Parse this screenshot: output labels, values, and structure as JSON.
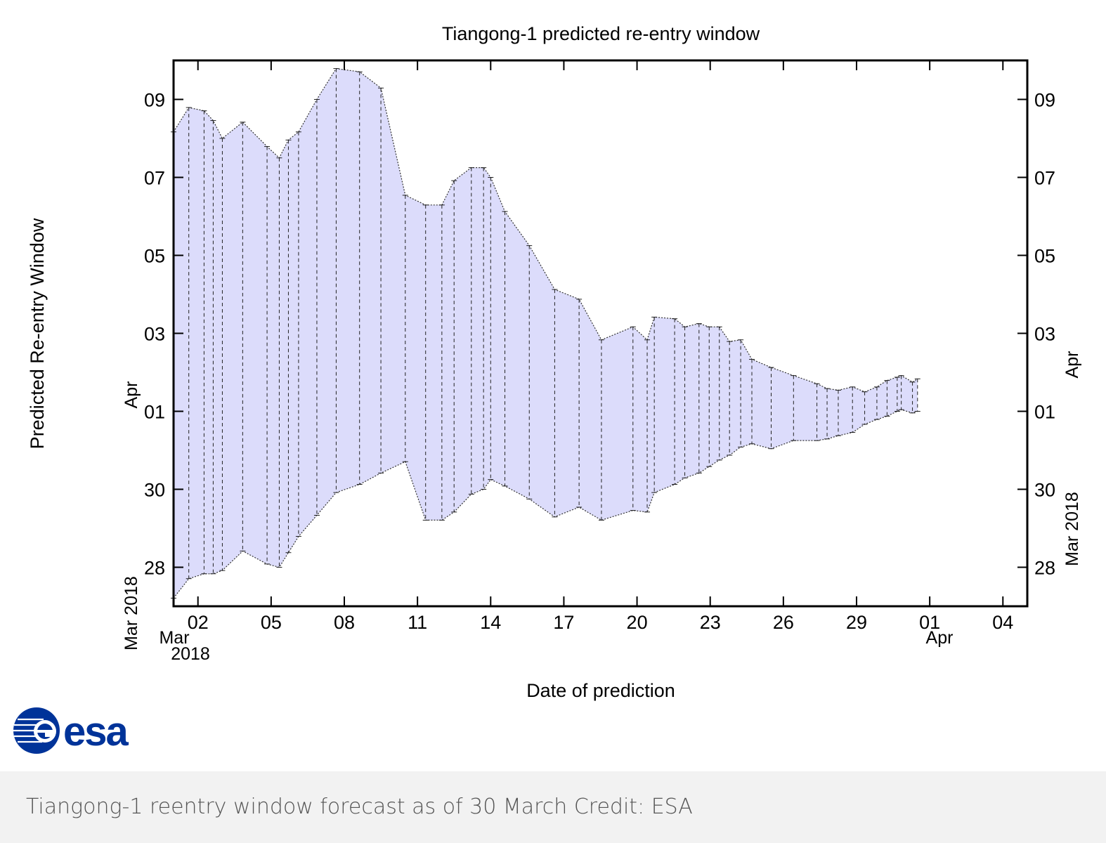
{
  "chart_data": {
    "type": "area",
    "title": "Tiangong-1 predicted re-entry window",
    "xlabel": "Date of prediction",
    "ylabel": "Predicted Re-entry Window",
    "x_axis": {
      "range": [
        "2018-03-01",
        "2018-04-05"
      ],
      "ticks": [
        "02",
        "05",
        "08",
        "11",
        "14",
        "17",
        "20",
        "23",
        "26",
        "29",
        "01",
        "04"
      ],
      "tick_dates": [
        "2018-03-02",
        "2018-03-05",
        "2018-03-08",
        "2018-03-11",
        "2018-03-14",
        "2018-03-17",
        "2018-03-20",
        "2018-03-23",
        "2018-03-26",
        "2018-03-29",
        "2018-04-01",
        "2018-04-04"
      ],
      "month_labels": [
        {
          "month": "Mar",
          "year": "2018"
        },
        {
          "month": "Apr"
        }
      ]
    },
    "y_axis": {
      "range": [
        "2018-03-27",
        "2018-04-10"
      ],
      "ticks": [
        "28",
        "30",
        "01",
        "03",
        "05",
        "07",
        "09"
      ],
      "tick_dates": [
        "2018-03-28",
        "2018-03-30",
        "2018-04-01",
        "2018-04-03",
        "2018-04-05",
        "2018-04-07",
        "2018-04-09"
      ],
      "left_month_labels": [
        "Mar 2018",
        "Apr"
      ],
      "right_month_labels": [
        "Mar 2018",
        "Apr"
      ]
    },
    "series": [
      {
        "x": [
          "2018-03-01 00:00",
          "2018-03-01 15:00",
          "2018-03-02 06:00",
          "2018-03-02 15:00",
          "2018-03-03 00:00",
          "2018-03-03 20:00",
          "2018-03-04 20:00",
          "2018-03-05 08:00",
          "2018-03-05 17:00",
          "2018-03-06 03:00",
          "2018-03-06 21:00",
          "2018-03-07 16:00",
          "2018-03-08 15:00",
          "2018-03-09 12:00",
          "2018-03-10 12:00",
          "2018-03-11 08:00",
          "2018-03-12 00:00",
          "2018-03-12 12:00",
          "2018-03-13 05:00",
          "2018-03-13 17:00",
          "2018-03-14 00:00",
          "2018-03-14 14:00",
          "2018-03-15 14:00",
          "2018-03-16 15:00",
          "2018-03-17 15:00",
          "2018-03-18 13:00",
          "2018-03-19 20:00",
          "2018-03-20 10:00",
          "2018-03-20 17:00",
          "2018-03-21 13:00",
          "2018-03-21 23:00",
          "2018-03-22 13:00",
          "2018-03-22 23:00",
          "2018-03-23 09:00",
          "2018-03-23 19:00",
          "2018-03-24 06:00",
          "2018-03-24 17:00",
          "2018-03-25 12:00",
          "2018-03-26 10:00",
          "2018-03-27 09:00",
          "2018-03-27 19:00",
          "2018-03-28 06:00",
          "2018-03-28 20:00",
          "2018-03-29 08:00",
          "2018-03-29 20:00",
          "2018-03-30 06:00",
          "2018-03-30 16:00",
          "2018-03-30 20:00",
          "2018-03-31 07:00",
          "2018-03-31 12:00"
        ],
        "upper": [
          "2018-04-08 04:00",
          "2018-04-08 19:00",
          "2018-04-08 17:00",
          "2018-04-08 11:00",
          "2018-04-08 00:00",
          "2018-04-08 10:00",
          "2018-04-07 19:00",
          "2018-04-07 12:00",
          "2018-04-07 23:00",
          "2018-04-08 04:00",
          "2018-04-09 00:00",
          "2018-04-09 19:00",
          "2018-04-09 17:00",
          "2018-04-09 07:00",
          "2018-04-06 13:00",
          "2018-04-06 07:00",
          "2018-04-06 07:00",
          "2018-04-06 22:00",
          "2018-04-07 06:00",
          "2018-04-07 06:00",
          "2018-04-07 00:00",
          "2018-04-06 03:00",
          "2018-04-05 06:00",
          "2018-04-04 03:00",
          "2018-04-03 21:00",
          "2018-04-02 20:00",
          "2018-04-03 04:00",
          "2018-04-02 20:00",
          "2018-04-03 10:00",
          "2018-04-03 09:00",
          "2018-04-03 04:00",
          "2018-04-03 06:00",
          "2018-04-03 04:00",
          "2018-04-03 04:00",
          "2018-04-02 19:00",
          "2018-04-02 20:00",
          "2018-04-02 08:00",
          "2018-04-02 03:00",
          "2018-04-01 22:00",
          "2018-04-01 17:00",
          "2018-04-01 14:00",
          "2018-04-01 13:00",
          "2018-04-01 15:00",
          "2018-04-01 12:00",
          "2018-04-01 15:00",
          "2018-04-01 19:00",
          "2018-04-01 21:00",
          "2018-04-01 22:00",
          "2018-04-01 18:00",
          "2018-04-01 20:00"
        ],
        "lower": [
          "2018-03-27 05:00",
          "2018-03-27 17:00",
          "2018-03-27 20:00",
          "2018-03-27 20:00",
          "2018-03-27 22:00",
          "2018-03-28 10:00",
          "2018-03-28 02:00",
          "2018-03-28 00:00",
          "2018-03-28 09:00",
          "2018-03-28 19:00",
          "2018-03-29 08:00",
          "2018-03-29 22:00",
          "2018-03-30 03:00",
          "2018-03-30 10:00",
          "2018-03-30 17:00",
          "2018-03-29 05:00",
          "2018-03-29 05:00",
          "2018-03-29 10:00",
          "2018-03-29 21:00",
          "2018-03-30 00:00",
          "2018-03-30 06:00",
          "2018-03-30 02:00",
          "2018-03-29 18:00",
          "2018-03-29 07:00",
          "2018-03-29 13:00",
          "2018-03-29 05:00",
          "2018-03-29 11:00",
          "2018-03-29 10:00",
          "2018-03-29 22:00",
          "2018-03-30 03:00",
          "2018-03-30 07:00",
          "2018-03-30 10:00",
          "2018-03-30 14:00",
          "2018-03-30 18:00",
          "2018-03-30 21:00",
          "2018-03-31 02:00",
          "2018-03-31 04:00",
          "2018-03-31 01:00",
          "2018-03-31 06:00",
          "2018-03-31 06:00",
          "2018-03-31 07:00",
          "2018-03-31 09:00",
          "2018-03-31 11:00",
          "2018-03-31 16:00",
          "2018-03-31 19:00",
          "2018-03-31 21:00",
          "2018-04-01 00:00",
          "2018-04-01 01:00",
          "2018-03-31 23:00",
          "2018-04-01 00:00"
        ]
      }
    ],
    "grid": false,
    "legend": "none",
    "fill_color": "#dcdcfb",
    "edge_color": "#333333"
  },
  "logo": {
    "text": "esa",
    "color": "#003399"
  },
  "caption": "Tiangong-1 reentry window forecast as of 30 March Credit: ESA"
}
